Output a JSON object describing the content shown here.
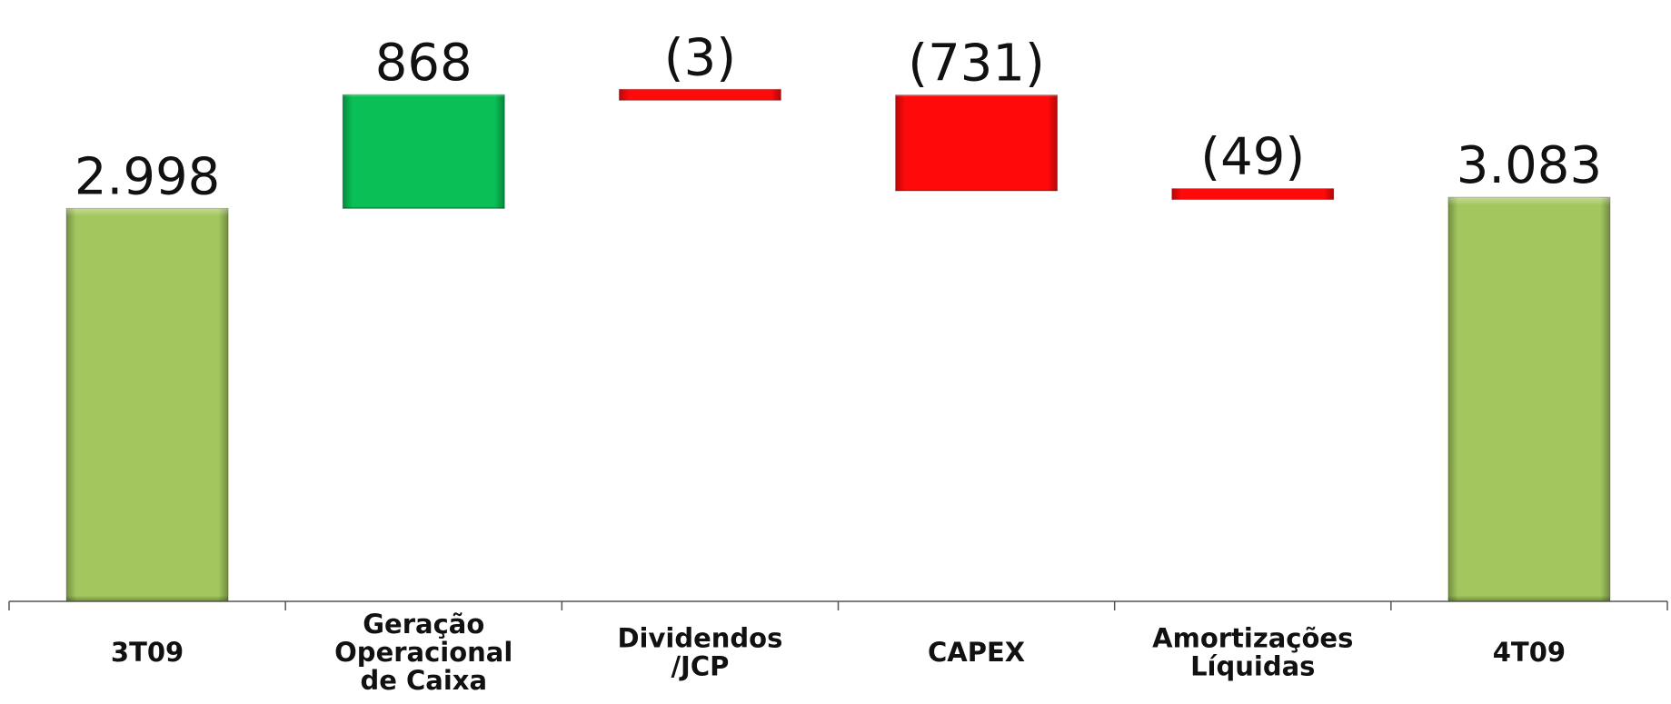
{
  "chart_data": {
    "type": "bar",
    "subtype": "waterfall",
    "title": "",
    "xlabel": "",
    "ylabel": "",
    "ylim": [
      0,
      3800
    ],
    "grid": false,
    "legend": "none",
    "categories": [
      [
        "3T09"
      ],
      [
        "Geração",
        "Operacional",
        "de Caixa"
      ],
      [
        "Dividendos",
        "/JCP"
      ],
      [
        "CAPEX"
      ],
      [
        "Amortizações",
        "Líquidas"
      ],
      [
        "4T09"
      ]
    ],
    "values": [
      2998,
      868,
      -3,
      -731,
      -49,
      3083
    ],
    "kinds": [
      "total",
      "increase",
      "decrease",
      "decrease",
      "decrease",
      "total"
    ],
    "data_labels": [
      "2.998",
      "868",
      "(3)",
      "(731)",
      "(49)",
      "3.083"
    ],
    "colors": {
      "total": "#a3c75e",
      "increase": "#0abf56",
      "decrease": "#ff0a0a"
    }
  }
}
